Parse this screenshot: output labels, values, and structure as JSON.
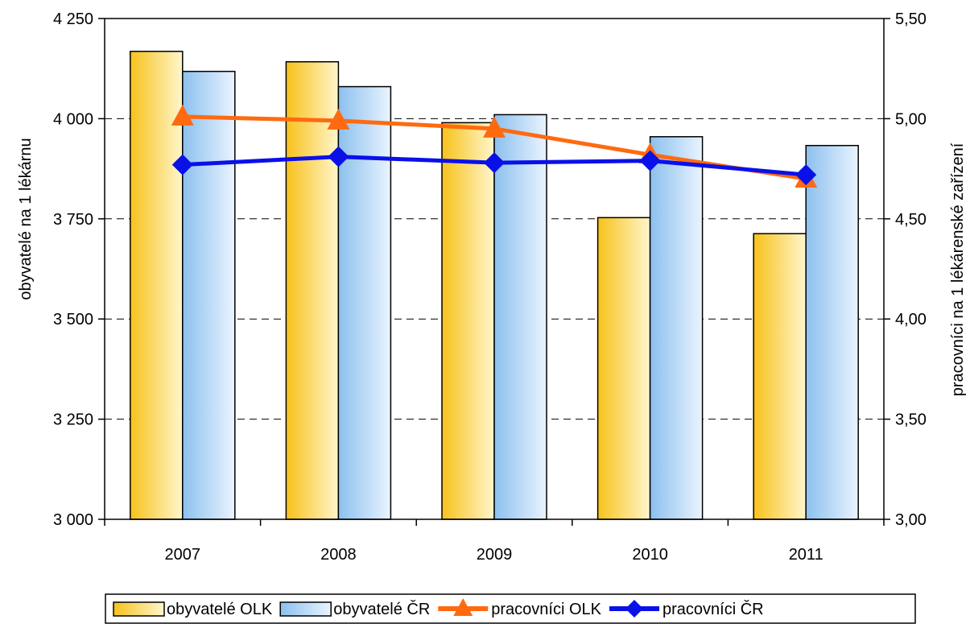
{
  "chart_data": {
    "type": "bar",
    "categories": [
      "2007",
      "2008",
      "2009",
      "2010",
      "2011"
    ],
    "left_axis": {
      "label": "obyvatelé na 1 lékárnu",
      "ylim": [
        3000,
        4250
      ],
      "ticks": [
        3000,
        3250,
        3500,
        3750,
        4000,
        4250
      ],
      "tick_labels": [
        "3 000",
        "3 250",
        "3 500",
        "3 750",
        "4 000",
        "4 250"
      ]
    },
    "right_axis": {
      "label": "pracovníci na 1 lékárenské zařízení",
      "ylim": [
        3.0,
        5.5
      ],
      "ticks": [
        3.0,
        3.5,
        4.0,
        4.5,
        5.0,
        5.5
      ],
      "tick_labels": [
        "3,00",
        "3,50",
        "4,00",
        "4,50",
        "5,00",
        "5,50"
      ]
    },
    "grid": true,
    "legend_position": "bottom",
    "series": [
      {
        "name": "obyvatelé OLK",
        "kind": "bar",
        "axis": "left",
        "color": "#f5c518",
        "values": [
          4168,
          4142,
          3990,
          3753,
          3713
        ]
      },
      {
        "name": "obyvatelé ČR",
        "kind": "bar",
        "axis": "left",
        "color": "#9ecbf2",
        "values": [
          4118,
          4080,
          4010,
          3955,
          3933
        ]
      },
      {
        "name": "pracovníci OLK",
        "kind": "line",
        "axis": "right",
        "marker": "triangle",
        "color": "#ff6a10",
        "values": [
          5.01,
          4.99,
          4.95,
          4.82,
          4.7
        ]
      },
      {
        "name": "pracovníci ČR",
        "kind": "line",
        "axis": "right",
        "marker": "diamond",
        "color": "#0a10e8",
        "values": [
          4.77,
          4.81,
          4.78,
          4.79,
          4.72
        ]
      }
    ]
  }
}
